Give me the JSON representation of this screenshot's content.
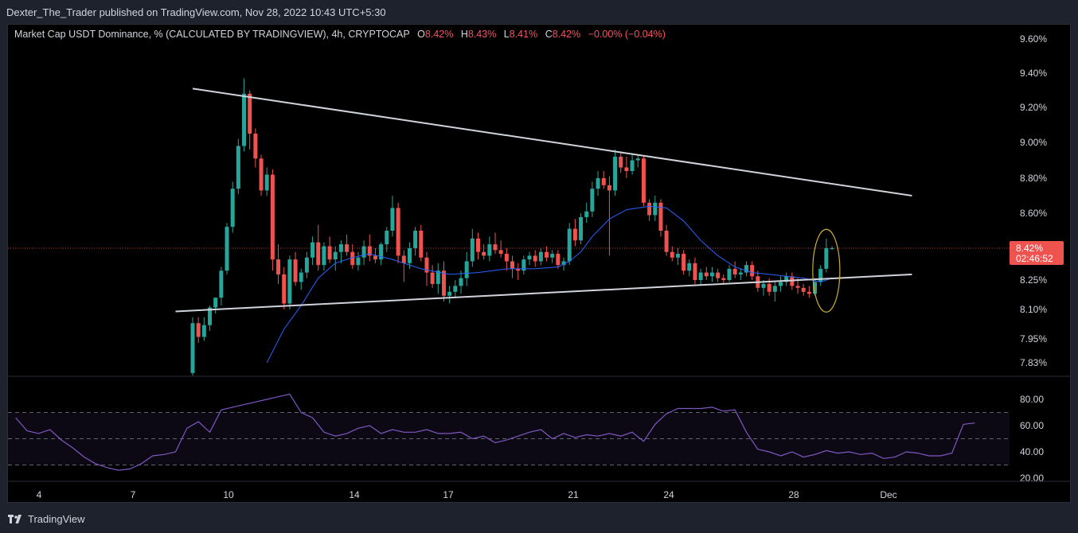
{
  "header": {
    "published": "Dexter_The_Trader published on TradingView.com, Nov 28, 2022 10:43 UTC+5:30"
  },
  "legend": {
    "symbol": "Market Cap USDT Dominance, % (CALCULATED BY TRADINGVIEW), 4h, CRYPTOCAP",
    "o_label": "O",
    "o": "8.42%",
    "h_label": "H",
    "h": "8.43%",
    "l_label": "L",
    "l": "8.41%",
    "c_label": "C",
    "c": "8.42%",
    "change": "−0.00% (−0.04%)"
  },
  "footer": {
    "brand": "TradingView"
  },
  "colors": {
    "up": "#26a69a",
    "down": "#ef5350",
    "ma": "#2962ff",
    "rsi": "#7e57c2",
    "trendline": "#d1d4dc",
    "ellipse": "#c9b037"
  },
  "chart_data": {
    "type": "candlestick",
    "title": "Market Cap USDT Dominance, % (CALCULATED BY TRADINGVIEW), 4h, CRYPTOCAP",
    "price_axis": {
      "ticks": [
        "9.60%",
        "9.40%",
        "9.20%",
        "9.00%",
        "8.80%",
        "8.60%",
        "8.25%",
        "8.10%",
        "7.95%",
        "7.83%"
      ],
      "tick_values": [
        9.6,
        9.4,
        9.2,
        9.0,
        8.8,
        8.6,
        8.25,
        8.1,
        7.95,
        7.83
      ]
    },
    "x_axis": {
      "labels": [
        "4",
        "7",
        "10",
        "14",
        "17",
        "21",
        "24",
        "28",
        "Dec"
      ]
    },
    "last_price": {
      "value": "8.42%",
      "countdown": "02:46:52"
    },
    "candles": [
      [
        7.76,
        8.06,
        7.7,
        8.03
      ],
      [
        8.03,
        8.06,
        7.93,
        7.96
      ],
      [
        7.96,
        8.06,
        7.94,
        8.02
      ],
      [
        8.02,
        8.12,
        7.99,
        8.11
      ],
      [
        8.11,
        8.16,
        8.08,
        8.16
      ],
      [
        8.16,
        8.32,
        8.12,
        8.3
      ],
      [
        8.3,
        8.55,
        8.28,
        8.53
      ],
      [
        8.53,
        8.78,
        8.5,
        8.74
      ],
      [
        8.74,
        9.02,
        8.71,
        8.98
      ],
      [
        8.98,
        9.37,
        8.95,
        9.28
      ],
      [
        9.28,
        9.3,
        8.96,
        9.05
      ],
      [
        9.05,
        9.08,
        8.86,
        8.91
      ],
      [
        8.91,
        8.93,
        8.7,
        8.73
      ],
      [
        8.73,
        8.86,
        8.7,
        8.82
      ],
      [
        8.82,
        8.85,
        8.3,
        8.36
      ],
      [
        8.36,
        8.44,
        8.23,
        8.28
      ],
      [
        8.28,
        8.32,
        8.1,
        8.13
      ],
      [
        8.13,
        8.38,
        8.1,
        8.36
      ],
      [
        8.36,
        8.4,
        8.22,
        8.24
      ],
      [
        8.24,
        8.31,
        8.2,
        8.29
      ],
      [
        8.29,
        8.4,
        8.26,
        8.37
      ],
      [
        8.37,
        8.48,
        8.33,
        8.45
      ],
      [
        8.45,
        8.54,
        8.3,
        8.33
      ],
      [
        8.33,
        8.45,
        8.3,
        8.43
      ],
      [
        8.43,
        8.48,
        8.34,
        8.36
      ],
      [
        8.36,
        8.43,
        8.3,
        8.4
      ],
      [
        8.4,
        8.46,
        8.34,
        8.44
      ],
      [
        8.44,
        8.49,
        8.38,
        8.4
      ],
      [
        8.4,
        8.44,
        8.31,
        8.33
      ],
      [
        8.33,
        8.4,
        8.3,
        8.37
      ],
      [
        8.37,
        8.46,
        8.33,
        8.43
      ],
      [
        8.43,
        8.49,
        8.35,
        8.38
      ],
      [
        8.38,
        8.42,
        8.34,
        8.36
      ],
      [
        8.36,
        8.45,
        8.33,
        8.44
      ],
      [
        8.44,
        8.53,
        8.4,
        8.51
      ],
      [
        8.51,
        8.7,
        8.48,
        8.63
      ],
      [
        8.63,
        8.66,
        8.34,
        8.38
      ],
      [
        8.38,
        8.41,
        8.24,
        8.34
      ],
      [
        8.34,
        8.45,
        8.31,
        8.42
      ],
      [
        8.42,
        8.53,
        8.38,
        8.51
      ],
      [
        8.51,
        8.54,
        8.35,
        8.37
      ],
      [
        8.37,
        8.4,
        8.22,
        8.29
      ],
      [
        8.29,
        8.33,
        8.21,
        8.23
      ],
      [
        8.23,
        8.34,
        8.18,
        8.3
      ],
      [
        8.3,
        8.35,
        8.14,
        8.17
      ],
      [
        8.17,
        8.22,
        8.13,
        8.19
      ],
      [
        8.19,
        8.25,
        8.16,
        8.22
      ],
      [
        8.22,
        8.3,
        8.18,
        8.26
      ],
      [
        8.26,
        8.4,
        8.22,
        8.35
      ],
      [
        8.35,
        8.52,
        8.32,
        8.47
      ],
      [
        8.47,
        8.5,
        8.36,
        8.4
      ],
      [
        8.4,
        8.44,
        8.36,
        8.38
      ],
      [
        8.38,
        8.48,
        8.35,
        8.44
      ],
      [
        8.44,
        8.5,
        8.39,
        8.41
      ],
      [
        8.41,
        8.46,
        8.37,
        8.39
      ],
      [
        8.39,
        8.42,
        8.3,
        8.35
      ],
      [
        8.35,
        8.38,
        8.26,
        8.31
      ],
      [
        8.31,
        8.34,
        8.25,
        8.3
      ],
      [
        8.3,
        8.38,
        8.28,
        8.36
      ],
      [
        8.36,
        8.4,
        8.33,
        8.38
      ],
      [
        8.38,
        8.41,
        8.32,
        8.35
      ],
      [
        8.35,
        8.42,
        8.33,
        8.4
      ],
      [
        8.4,
        8.43,
        8.35,
        8.37
      ],
      [
        8.37,
        8.41,
        8.34,
        8.39
      ],
      [
        8.39,
        8.41,
        8.31,
        8.33
      ],
      [
        8.33,
        8.37,
        8.3,
        8.35
      ],
      [
        8.35,
        8.55,
        8.33,
        8.52
      ],
      [
        8.52,
        8.57,
        8.43,
        8.46
      ],
      [
        8.46,
        8.6,
        8.44,
        8.58
      ],
      [
        8.58,
        8.66,
        8.55,
        8.61
      ],
      [
        8.61,
        8.78,
        8.58,
        8.74
      ],
      [
        8.74,
        8.84,
        8.7,
        8.8
      ],
      [
        8.8,
        8.84,
        8.74,
        8.76
      ],
      [
        8.76,
        8.81,
        8.38,
        8.73
      ],
      [
        8.73,
        8.96,
        8.7,
        8.92
      ],
      [
        8.92,
        8.95,
        8.83,
        8.86
      ],
      [
        8.86,
        8.92,
        8.8,
        8.84
      ],
      [
        8.84,
        8.94,
        8.82,
        8.9
      ],
      [
        8.9,
        8.93,
        8.86,
        8.91
      ],
      [
        8.91,
        8.92,
        8.64,
        8.66
      ],
      [
        8.66,
        8.68,
        8.56,
        8.59
      ],
      [
        8.59,
        8.7,
        8.56,
        8.66
      ],
      [
        8.66,
        8.68,
        8.48,
        8.51
      ],
      [
        8.51,
        8.54,
        8.38,
        8.4
      ],
      [
        8.4,
        8.43,
        8.35,
        8.37
      ],
      [
        8.37,
        8.42,
        8.33,
        8.39
      ],
      [
        8.39,
        8.41,
        8.28,
        8.3
      ],
      [
        8.3,
        8.36,
        8.27,
        8.34
      ],
      [
        8.34,
        8.37,
        8.23,
        8.25
      ],
      [
        8.25,
        8.31,
        8.22,
        8.29
      ],
      [
        8.29,
        8.32,
        8.25,
        8.27
      ],
      [
        8.27,
        8.32,
        8.24,
        8.29
      ],
      [
        8.29,
        8.31,
        8.24,
        8.26
      ],
      [
        8.26,
        8.28,
        8.23,
        8.25
      ],
      [
        8.25,
        8.33,
        8.24,
        8.31
      ],
      [
        8.31,
        8.35,
        8.26,
        8.28
      ],
      [
        8.28,
        8.31,
        8.25,
        8.29
      ],
      [
        8.29,
        8.35,
        8.27,
        8.33
      ],
      [
        8.33,
        8.35,
        8.25,
        8.27
      ],
      [
        8.27,
        8.3,
        8.19,
        8.21
      ],
      [
        8.21,
        8.25,
        8.17,
        8.23
      ],
      [
        8.23,
        8.26,
        8.17,
        8.19
      ],
      [
        8.19,
        8.24,
        8.14,
        8.22
      ],
      [
        8.22,
        8.27,
        8.19,
        8.24
      ],
      [
        8.24,
        8.29,
        8.22,
        8.27
      ],
      [
        8.27,
        8.29,
        8.2,
        8.22
      ],
      [
        8.22,
        8.26,
        8.18,
        8.21
      ],
      [
        8.21,
        8.23,
        8.17,
        8.19
      ],
      [
        8.19,
        8.22,
        8.16,
        8.18
      ],
      [
        8.18,
        8.26,
        8.17,
        8.24
      ],
      [
        8.24,
        8.33,
        8.22,
        8.31
      ],
      [
        8.31,
        8.47,
        8.29,
        8.42
      ],
      [
        8.42,
        8.43,
        8.41,
        8.42
      ]
    ],
    "ma": [
      [
        13,
        7.83
      ],
      [
        16,
        8.0
      ],
      [
        19,
        8.12
      ],
      [
        22,
        8.26
      ],
      [
        25,
        8.34
      ],
      [
        28,
        8.37
      ],
      [
        31,
        8.39
      ],
      [
        35,
        8.36
      ],
      [
        40,
        8.31
      ],
      [
        45,
        8.28
      ],
      [
        50,
        8.29
      ],
      [
        55,
        8.31
      ],
      [
        60,
        8.31
      ],
      [
        64,
        8.32
      ],
      [
        66,
        8.35
      ],
      [
        68,
        8.4
      ],
      [
        70,
        8.48
      ],
      [
        73,
        8.57
      ],
      [
        76,
        8.62
      ],
      [
        80,
        8.64
      ],
      [
        83,
        8.63
      ],
      [
        86,
        8.56
      ],
      [
        89,
        8.46
      ],
      [
        92,
        8.38
      ],
      [
        95,
        8.32
      ],
      [
        98,
        8.29
      ],
      [
        101,
        8.28
      ],
      [
        104,
        8.27
      ],
      [
        107,
        8.26
      ],
      [
        110,
        8.24
      ],
      [
        112,
        8.26
      ]
    ],
    "trendlines": [
      {
        "name": "upper",
        "from": [
          0,
          9.31
        ],
        "to": [
          126,
          8.7
        ]
      },
      {
        "name": "lower",
        "from": [
          -3,
          8.09
        ],
        "to": [
          126,
          8.28
        ]
      }
    ],
    "rsi": {
      "ticks": [
        "80.00",
        "60.00",
        "40.00",
        "20.00"
      ],
      "tick_values": [
        80,
        60,
        40,
        20
      ],
      "bands": [
        70,
        50,
        30
      ],
      "values": [
        [
          -31,
          66
        ],
        [
          -29,
          56
        ],
        [
          -27,
          54
        ],
        [
          -25,
          57
        ],
        [
          -23,
          49
        ],
        [
          -21,
          43
        ],
        [
          -19,
          36
        ],
        [
          -17,
          31
        ],
        [
          -15,
          28
        ],
        [
          -13,
          26
        ],
        [
          -11,
          27
        ],
        [
          -9,
          31
        ],
        [
          -7,
          37
        ],
        [
          -5,
          38
        ],
        [
          -3,
          40
        ],
        [
          -1,
          58
        ],
        [
          1,
          63
        ],
        [
          3,
          55
        ],
        [
          5,
          72
        ],
        [
          7,
          74
        ],
        [
          9,
          76
        ],
        [
          11,
          78
        ],
        [
          13,
          80
        ],
        [
          15,
          82
        ],
        [
          17,
          84
        ],
        [
          19,
          70
        ],
        [
          21,
          66
        ],
        [
          23,
          55
        ],
        [
          25,
          52
        ],
        [
          27,
          54
        ],
        [
          29,
          58
        ],
        [
          31,
          60
        ],
        [
          33,
          54
        ],
        [
          35,
          57
        ],
        [
          37,
          55
        ],
        [
          39,
          55
        ],
        [
          41,
          57
        ],
        [
          43,
          54
        ],
        [
          45,
          54
        ],
        [
          47,
          55
        ],
        [
          49,
          50
        ],
        [
          51,
          52
        ],
        [
          53,
          47
        ],
        [
          55,
          49
        ],
        [
          57,
          52
        ],
        [
          59,
          55
        ],
        [
          61,
          57
        ],
        [
          63,
          50
        ],
        [
          65,
          54
        ],
        [
          67,
          51
        ],
        [
          69,
          53
        ],
        [
          71,
          52
        ],
        [
          73,
          54
        ],
        [
          75,
          52
        ],
        [
          77,
          55
        ],
        [
          79,
          48
        ],
        [
          81,
          61
        ],
        [
          83,
          69
        ],
        [
          85,
          73
        ],
        [
          87,
          73
        ],
        [
          89,
          73
        ],
        [
          91,
          74
        ],
        [
          93,
          71
        ],
        [
          95,
          72
        ],
        [
          97,
          55
        ],
        [
          99,
          42
        ],
        [
          101,
          40
        ],
        [
          103,
          37
        ],
        [
          105,
          40
        ],
        [
          107,
          36
        ],
        [
          109,
          38
        ],
        [
          111,
          41
        ],
        [
          113,
          39
        ],
        [
          115,
          40
        ],
        [
          117,
          38
        ],
        [
          119,
          39
        ],
        [
          121,
          35
        ],
        [
          123,
          36
        ],
        [
          125,
          40
        ],
        [
          127,
          39
        ],
        [
          129,
          37
        ],
        [
          131,
          37
        ],
        [
          133,
          39
        ],
        [
          135,
          61
        ],
        [
          137,
          62
        ]
      ]
    }
  }
}
